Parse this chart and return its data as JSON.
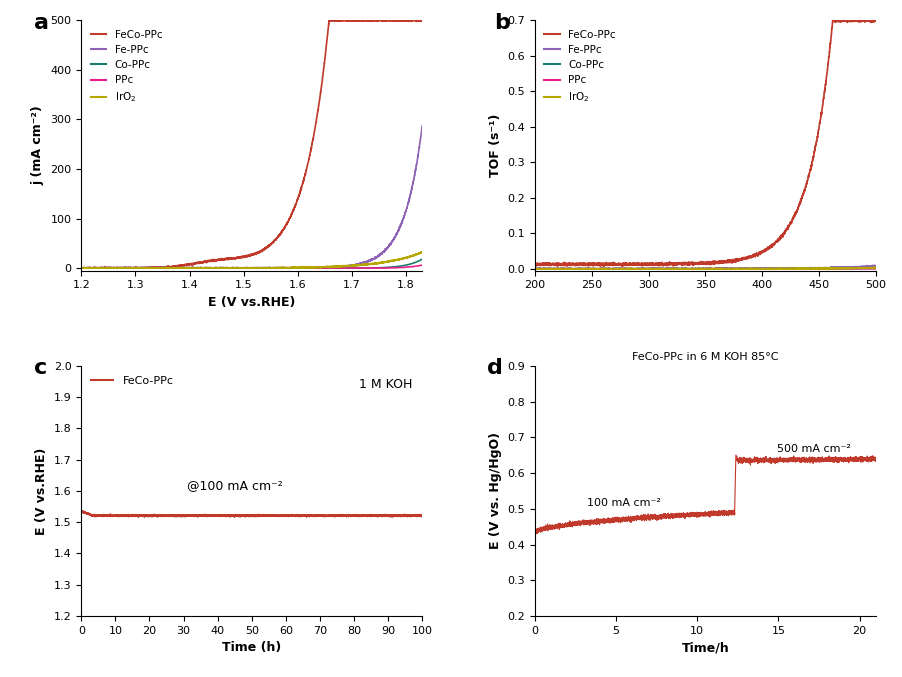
{
  "colors": {
    "FeCo-PPc": "#c0392b",
    "Fe-PPc": "#8e63b5",
    "Co-PPc": "#1a7a6e",
    "PPc": "#e91e8c",
    "IrO2": "#b5a600"
  },
  "panel_a": {
    "xlabel": "E (V vs.RHE)",
    "ylabel": "j (mA cm⁻²)",
    "xlim": [
      1.2,
      1.83
    ],
    "ylim": [
      -5,
      500
    ],
    "xticks": [
      1.2,
      1.3,
      1.4,
      1.5,
      1.6,
      1.7,
      1.8
    ],
    "yticks": [
      0,
      100,
      200,
      300,
      400,
      500
    ]
  },
  "panel_b": {
    "ylabel": "TOF (s⁻¹)",
    "xlim": [
      200,
      500
    ],
    "ylim": [
      -0.005,
      0.7
    ],
    "xticks": [
      200,
      250,
      300,
      350,
      400,
      450,
      500
    ],
    "yticks": [
      0.0,
      0.1,
      0.2,
      0.3,
      0.4,
      0.5,
      0.6,
      0.7
    ]
  },
  "panel_c": {
    "xlabel": "Time (h)",
    "ylabel": "E (V vs.RHE)",
    "xlim": [
      0,
      100
    ],
    "ylim": [
      1.2,
      2.0
    ],
    "xticks": [
      0,
      10,
      20,
      30,
      40,
      50,
      60,
      70,
      80,
      90,
      100
    ],
    "yticks": [
      1.2,
      1.3,
      1.4,
      1.5,
      1.6,
      1.7,
      1.8,
      1.9,
      2.0
    ],
    "annotation": "@100 mA cm⁻²",
    "ann_x": 45,
    "ann_y": 1.595,
    "corner_text": "1 M KOH",
    "legend_label": "FeCo-PPc",
    "stable_voltage": 1.521
  },
  "panel_d": {
    "xlabel": "Time/h",
    "ylabel": "E (V vs. Hg/HgO)",
    "xlim": [
      0,
      21
    ],
    "ylim": [
      0.2,
      0.9
    ],
    "xticks": [
      0,
      5,
      10,
      15,
      20
    ],
    "yticks": [
      0.2,
      0.3,
      0.4,
      0.5,
      0.6,
      0.7,
      0.8,
      0.9
    ],
    "title_text": "FeCo-PPc in 6 M KOH 85°C",
    "ann1": "100 mA cm⁻²",
    "ann2": "500 mA cm⁻²",
    "v_start": 0.432,
    "v_end1": 0.49,
    "v_high": 0.635,
    "v_spike": 0.65,
    "t_switch": 12.3
  },
  "bg_color": "#ffffff",
  "line_color_red": "#c0392b"
}
